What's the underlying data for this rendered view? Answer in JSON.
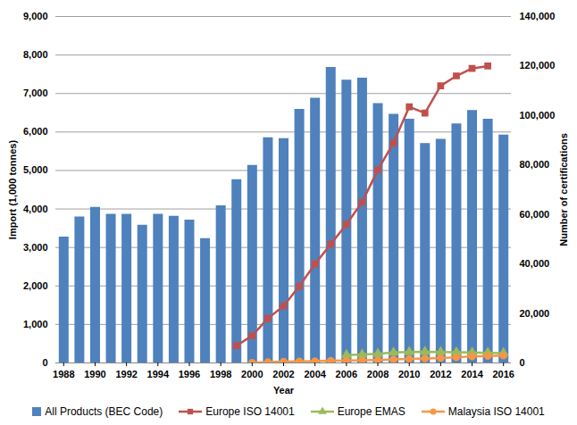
{
  "chart_data": {
    "type": "bar",
    "xlabel": "Year",
    "ylabel": "Import (1,000 tonnes)",
    "y2label": "Number of certifications",
    "x": [
      1988,
      1989,
      1990,
      1991,
      1992,
      1993,
      1994,
      1995,
      1996,
      1997,
      1998,
      1999,
      2000,
      2001,
      2002,
      2003,
      2004,
      2005,
      2006,
      2007,
      2008,
      2009,
      2010,
      2011,
      2012,
      2013,
      2014,
      2015,
      2016
    ],
    "xlim": [
      1987.5,
      2016.5
    ],
    "xticks": [
      1988,
      1990,
      1992,
      1994,
      1996,
      1998,
      2000,
      2002,
      2004,
      2006,
      2008,
      2010,
      2012,
      2014,
      2016
    ],
    "ylim": [
      0,
      9000
    ],
    "yticks": [
      0,
      {
        "value": 1000,
        "label": "1,000"
      },
      {
        "value": 2000,
        "label": "2,000"
      },
      {
        "value": 3000,
        "label": "3,000"
      },
      {
        "value": 4000,
        "label": "4,000"
      },
      {
        "value": 5000,
        "label": "5,000"
      },
      {
        "value": 6000,
        "label": "6,000"
      },
      {
        "value": 7000,
        "label": "7,000"
      },
      {
        "value": 8000,
        "label": "8,000"
      },
      {
        "value": 9000,
        "label": "9,000"
      }
    ],
    "y2lim": [
      0,
      140000
    ],
    "y2ticks": [
      0,
      {
        "value": 20000,
        "label": "20,000"
      },
      {
        "value": 40000,
        "label": "40,000"
      },
      {
        "value": 60000,
        "label": "60,000"
      },
      {
        "value": 80000,
        "label": "80,000"
      },
      {
        "value": 100000,
        "label": "100,000"
      },
      {
        "value": 120000,
        "label": "120,000"
      },
      {
        "value": 140000,
        "label": "140,000"
      }
    ],
    "grid": true,
    "legend": "bottom",
    "series": [
      {
        "name": "All Products (BEC Code)",
        "type": "bar",
        "color": "#4f81bd",
        "values": [
          3270,
          3790,
          4040,
          3860,
          3860,
          3580,
          3860,
          3810,
          3710,
          3230,
          4080,
          4760,
          5130,
          5850,
          5830,
          6590,
          6880,
          7680,
          7350,
          7400,
          6740,
          6460,
          6330,
          5700,
          5810,
          6210,
          6560,
          6330,
          5920
        ]
      },
      {
        "name": "Europe ISO 14001",
        "type": "line",
        "axis": "y2",
        "color": "#c0504d",
        "marker": "square",
        "values": [
          null,
          null,
          null,
          null,
          null,
          null,
          null,
          null,
          null,
          null,
          null,
          7000,
          11000,
          18000,
          23000,
          31000,
          40000,
          48000,
          56000,
          65000,
          78000,
          89000,
          103500,
          101000,
          112000,
          116000,
          119000,
          120000,
          null
        ]
      },
      {
        "name": "Europe EMAS",
        "type": "line",
        "axis": "y2",
        "color": "#9bbb59",
        "marker": "triangle",
        "values": [
          null,
          null,
          null,
          null,
          null,
          null,
          null,
          null,
          null,
          null,
          null,
          null,
          null,
          null,
          null,
          null,
          null,
          null,
          3200,
          3400,
          3700,
          4200,
          4400,
          4500,
          4400,
          4300,
          4200,
          4100,
          4000
        ]
      },
      {
        "name": "Malaysia ISO 14001",
        "type": "line",
        "axis": "y2",
        "color": "#f79646",
        "marker": "circle",
        "values": [
          null,
          null,
          null,
          null,
          null,
          null,
          null,
          null,
          null,
          null,
          null,
          null,
          100,
          400,
          500,
          600,
          700,
          900,
          1000,
          1100,
          1200,
          1400,
          1600,
          1800,
          2000,
          2300,
          2600,
          2800,
          3000
        ]
      }
    ]
  }
}
